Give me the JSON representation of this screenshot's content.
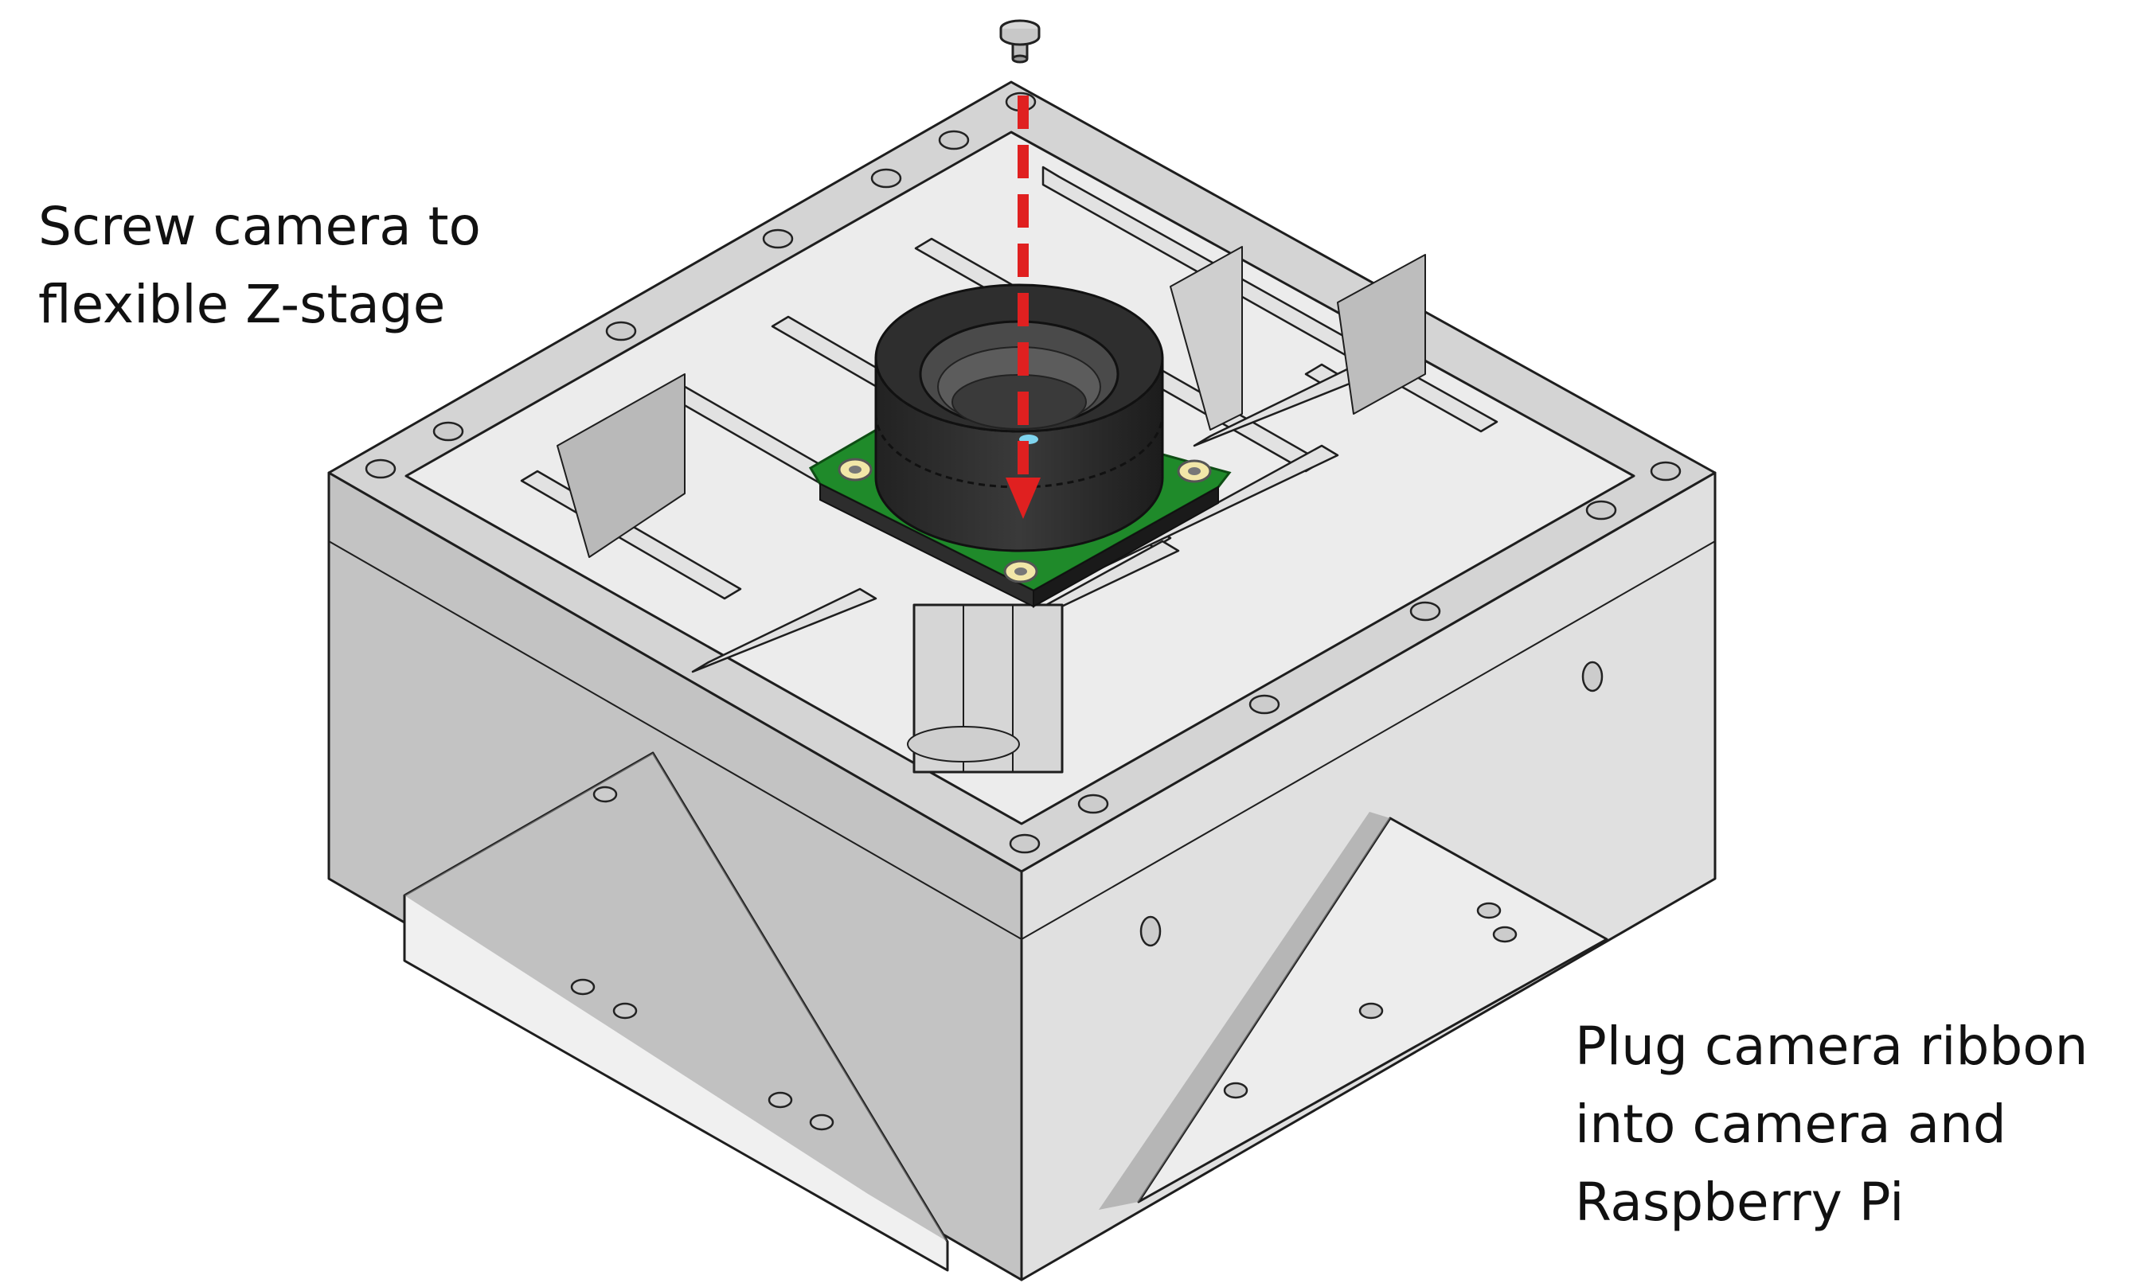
{
  "instructions": {
    "top": [
      "Screw camera to",
      "flexible Z-stage"
    ],
    "bottom": [
      "Plug camera ribbon",
      "into camera and",
      "Raspberry Pi"
    ]
  },
  "colors": {
    "housing_top": "#d9d9d9",
    "housing_front_left": "#bdbdbd",
    "housing_front_right": "#dcdcdc",
    "housing_interior": "#e6e6e6",
    "outline": "#1e1e1e",
    "camera_board": "#1f8a2a",
    "lens_body": "#2b2b2b",
    "arrow": "#e02020"
  },
  "icons": [
    "screw-icon",
    "camera-module-icon",
    "insertion-arrow-icon"
  ]
}
